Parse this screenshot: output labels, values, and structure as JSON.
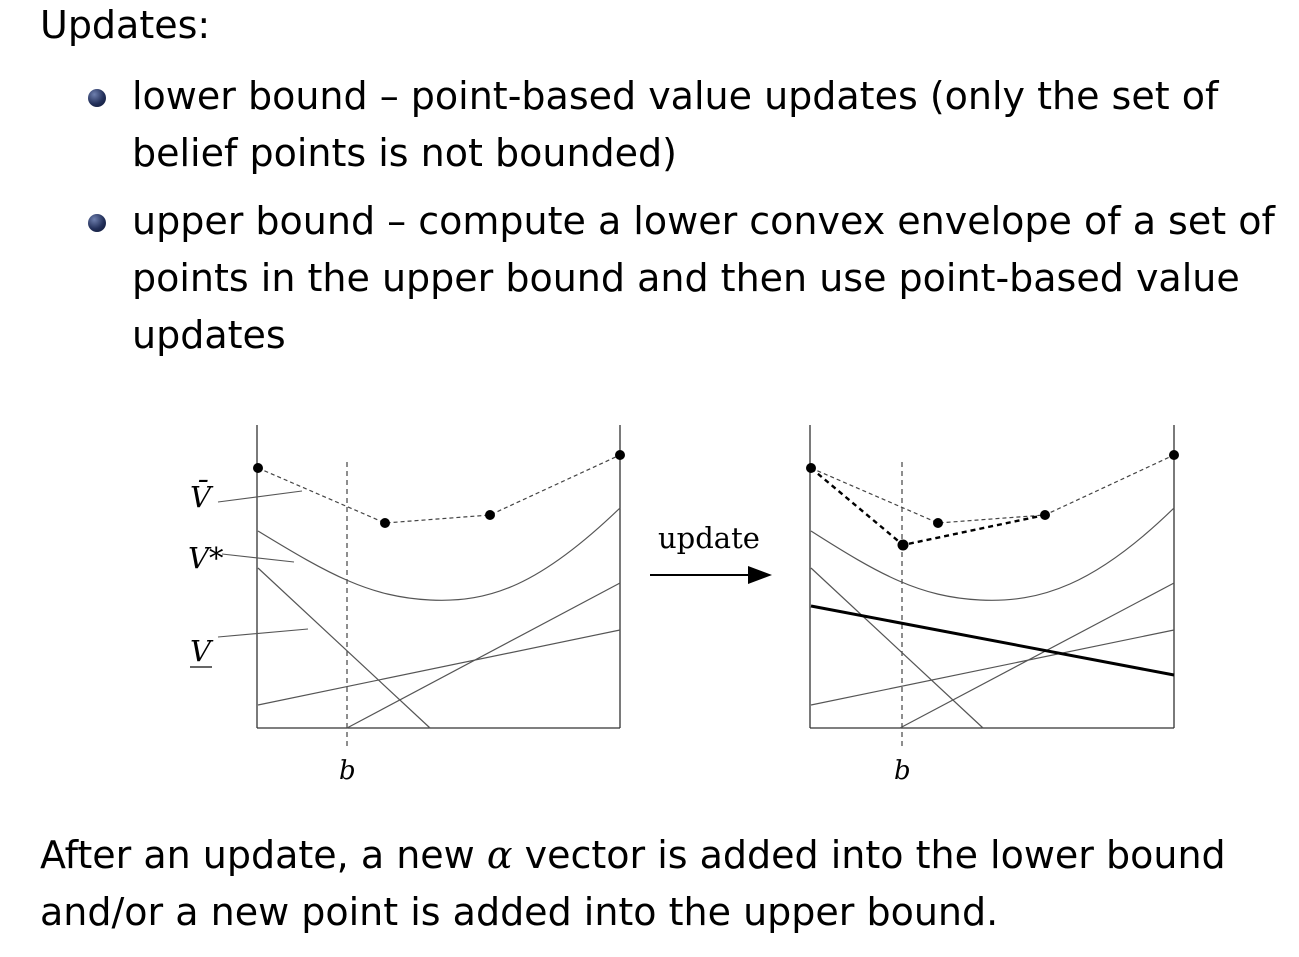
{
  "heading": "Updates:",
  "bullets": [
    {
      "text": "lower bound – point-based value updates (only the set of belief points is not bounded)"
    },
    {
      "text": "upper bound – compute a lower convex envelope of a set of points in the upper bound and then use point-based value updates"
    }
  ],
  "figure": {
    "left_panel": {
      "labels": {
        "v_upper": "V̄",
        "v_star": "V*",
        "v_lower": "V"
      },
      "belief_label": "b"
    },
    "arrow_label": "update",
    "right_panel": {
      "belief_label": "b"
    }
  },
  "footer": {
    "before_alpha": "After an update, a new ",
    "alpha_symbol": "α",
    "after_alpha": " vector is added into the lower bound and/or a new point is added into the upper bound."
  }
}
